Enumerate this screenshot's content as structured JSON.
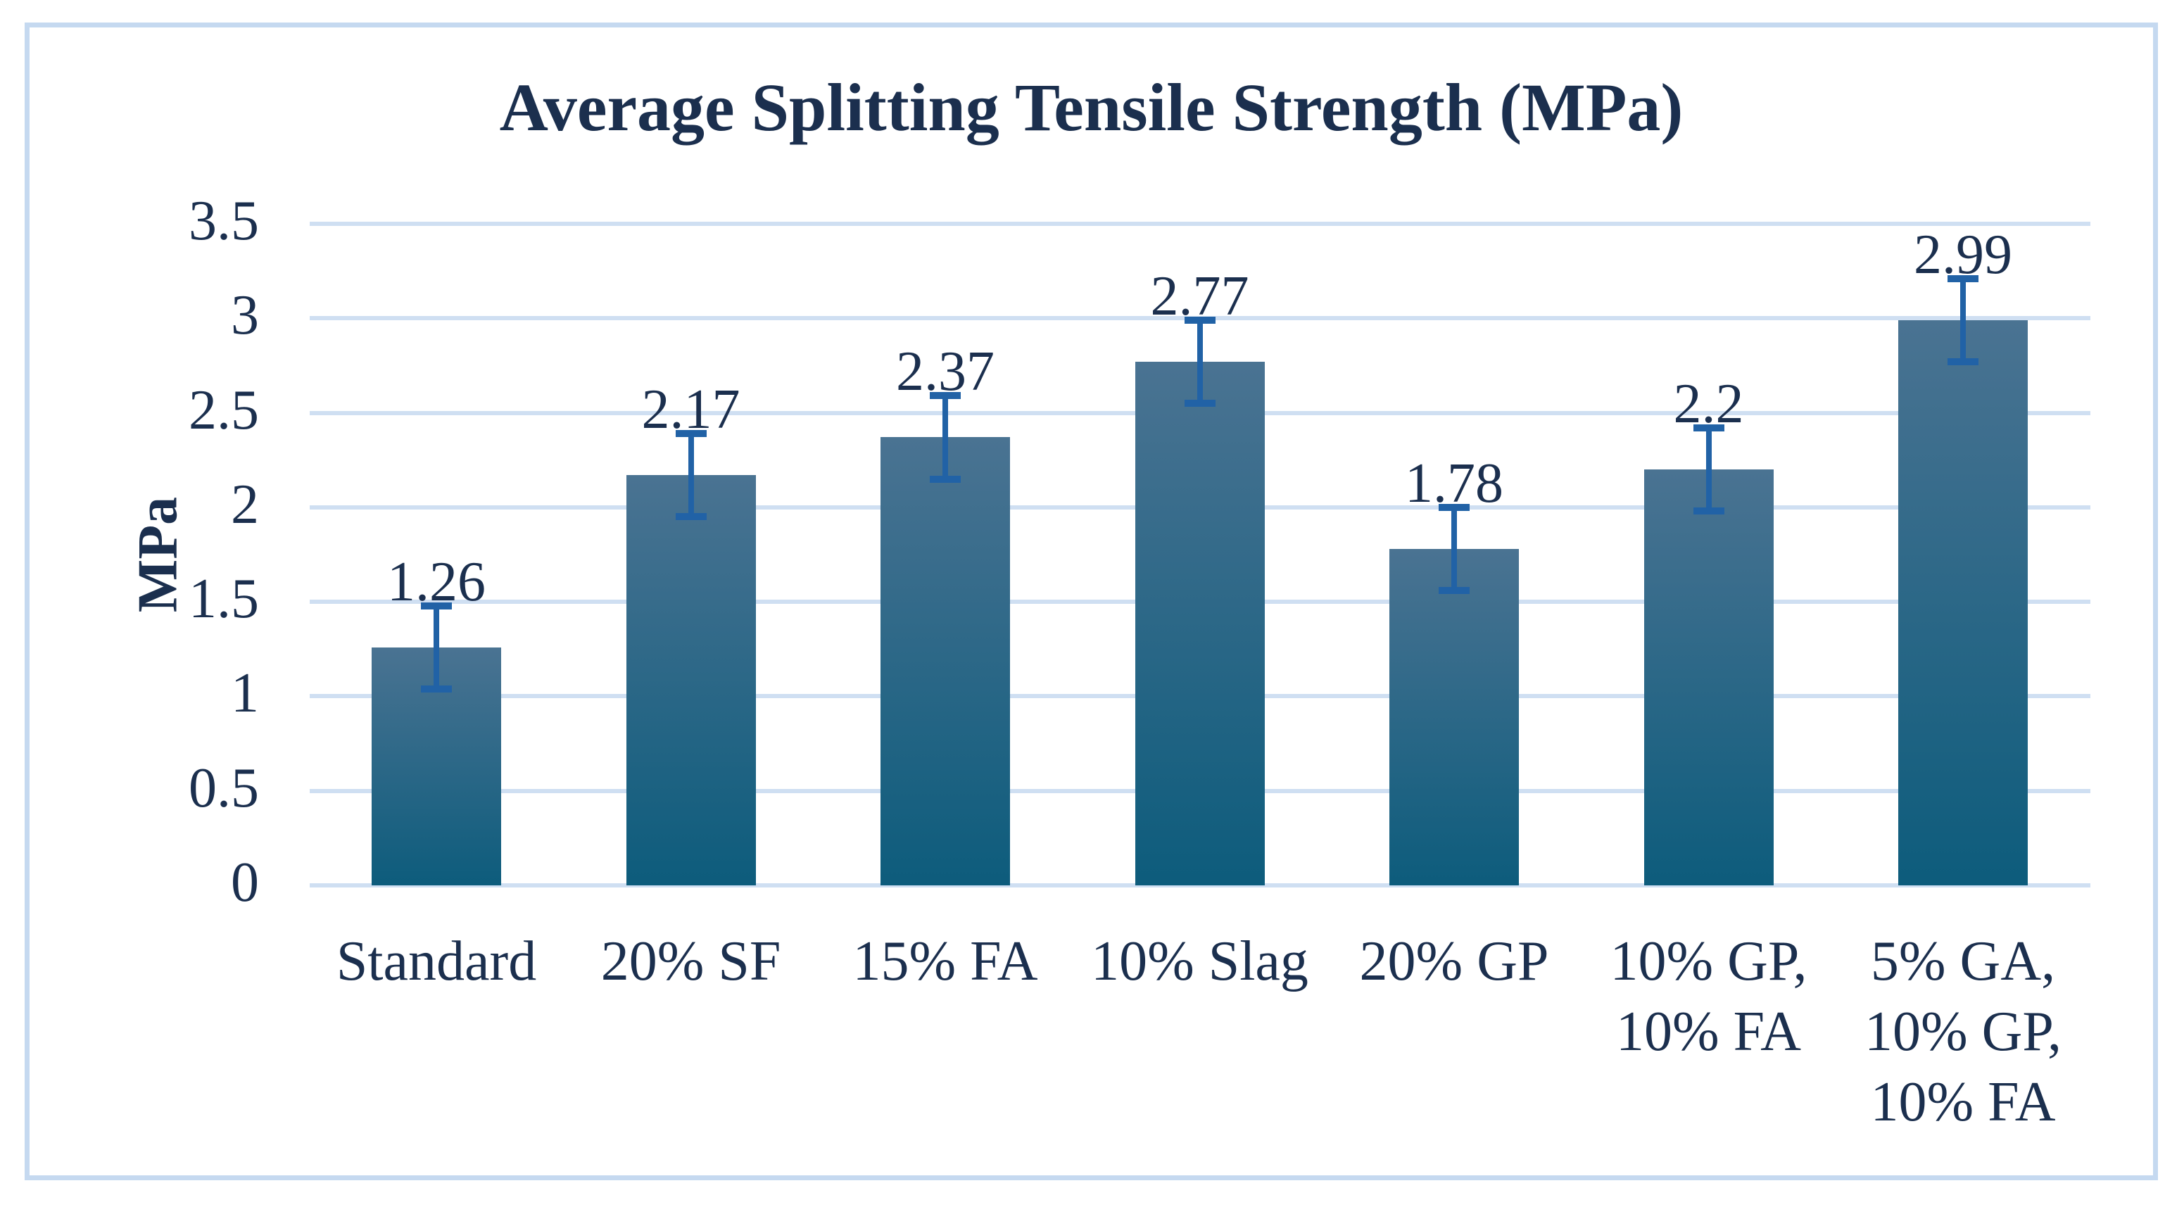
{
  "title": "Average Splitting Tensile Strength (MPa)",
  "y_axis": {
    "label": "MPa",
    "ticks": [
      "3.5",
      "3",
      "2.5",
      "2",
      "1.5",
      "1",
      "0.5",
      "0"
    ]
  },
  "chart_data": {
    "type": "bar",
    "title": "Average Splitting Tensile Strength (MPa)",
    "categories": [
      "Standard",
      "20% SF",
      "15% FA",
      "10% Slag",
      "20% GP",
      "10% GP, 10% FA",
      "5% GA, 10% GP, 10% FA"
    ],
    "category_lines": [
      [
        "Standard"
      ],
      [
        "20% SF"
      ],
      [
        "15% FA"
      ],
      [
        "10% Slag"
      ],
      [
        "20% GP"
      ],
      [
        "10% GP,",
        "10% FA"
      ],
      [
        "5% GA,",
        "10% GP,",
        "10% FA"
      ]
    ],
    "values": [
      1.26,
      2.17,
      2.37,
      2.77,
      1.78,
      2.2,
      2.99
    ],
    "value_labels": [
      "1.26",
      "2.17",
      "2.37",
      "2.77",
      "1.78",
      "2.2",
      "2.99"
    ],
    "error": 0.22,
    "xlabel": "",
    "ylabel": "MPa",
    "ylim": [
      0,
      3.5
    ],
    "ytick_step": 0.5,
    "yticks": [
      0,
      0.5,
      1,
      1.5,
      2,
      2.5,
      3,
      3.5
    ],
    "grid": true,
    "legend": false,
    "error_bars": true
  },
  "colors": {
    "text": "#1b2f4e",
    "gridline": "#cfdff2",
    "border": "#c5d9f0",
    "bar_top": "#4a7392",
    "bar_bottom": "#0d5c7c",
    "error_bar": "#2162a6",
    "background": "#ffffff"
  }
}
